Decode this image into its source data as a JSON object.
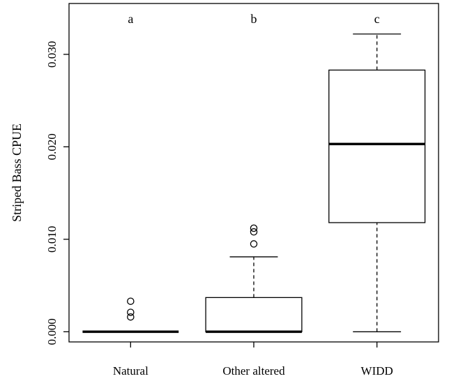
{
  "chart_data": {
    "type": "box",
    "title": "",
    "xlabel": "",
    "ylabel": "Striped Bass CPUE",
    "ylim": [
      -0.0011,
      0.0355
    ],
    "yticks": [
      "0.000",
      "0.010",
      "0.020",
      "0.030"
    ],
    "yticks_values": [
      0.0,
      0.01,
      0.02,
      0.03
    ],
    "grid": false,
    "categories": [
      "Natural",
      "Other altered",
      "WIDD"
    ],
    "boxes": [
      {
        "category": "Natural",
        "min": 0.0,
        "q1": 0.0,
        "median": 0.0,
        "q3": 0.0,
        "max": 0.0,
        "outliers": [
          0.0033,
          0.0021,
          0.0016
        ],
        "letter": "a"
      },
      {
        "category": "Other altered",
        "min": 0.0,
        "q1": 0.0,
        "median": 0.0,
        "q3": 0.0037,
        "max": 0.0081,
        "outliers": [
          0.0112,
          0.0108,
          0.0095
        ],
        "letter": "b"
      },
      {
        "category": "WIDD",
        "min": 0.0,
        "q1": 0.0118,
        "median": 0.0203,
        "q3": 0.0283,
        "max": 0.0322,
        "outliers": [],
        "letter": "c"
      }
    ]
  }
}
